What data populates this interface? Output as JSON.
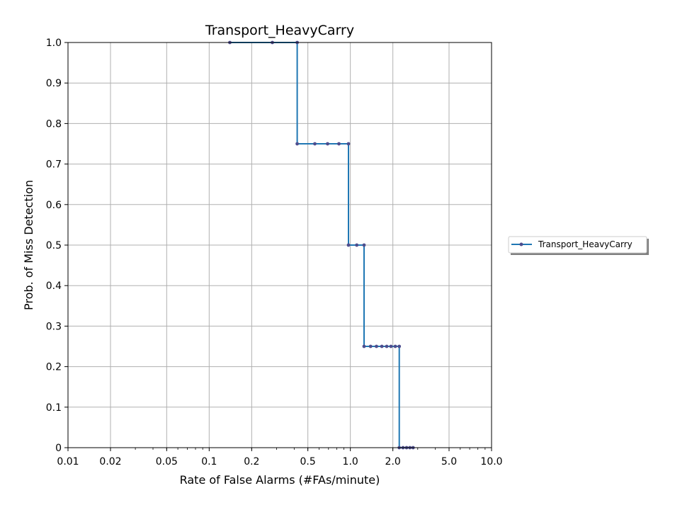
{
  "chart_data": {
    "type": "line",
    "title": "Transport_HeavyCarry",
    "xlabel": "Rate of False Alarms (#FAs/minute)",
    "ylabel": "Prob. of Miss Detection",
    "xscale": "log",
    "xlim": [
      0.01,
      10.0
    ],
    "ylim": [
      0,
      1.0
    ],
    "grid": true,
    "legend_position": "right, outside plot",
    "x_ticks": [
      {
        "value": 0.01,
        "label": "0.01"
      },
      {
        "value": 0.02,
        "label": "0.02"
      },
      {
        "value": 0.05,
        "label": "0.05"
      },
      {
        "value": 0.1,
        "label": "0.1"
      },
      {
        "value": 0.2,
        "label": "0.2"
      },
      {
        "value": 0.5,
        "label": "0.5"
      },
      {
        "value": 1.0,
        "label": "1.0"
      },
      {
        "value": 2.0,
        "label": "2.0"
      },
      {
        "value": 5.0,
        "label": "5.0"
      },
      {
        "value": 10.0,
        "label": "10.0"
      }
    ],
    "y_ticks": [
      {
        "value": 0,
        "label": "0"
      },
      {
        "value": 0.1,
        "label": "0.1"
      },
      {
        "value": 0.2,
        "label": "0.2"
      },
      {
        "value": 0.3,
        "label": "0.3"
      },
      {
        "value": 0.4,
        "label": "0.4"
      },
      {
        "value": 0.5,
        "label": "0.5"
      },
      {
        "value": 0.6,
        "label": "0.6"
      },
      {
        "value": 0.7,
        "label": "0.7"
      },
      {
        "value": 0.8,
        "label": "0.8"
      },
      {
        "value": 0.9,
        "label": "0.9"
      },
      {
        "value": 1.0,
        "label": "1.0"
      }
    ],
    "series": [
      {
        "name": "Transport_HeavyCarry",
        "color": "#1f77b4",
        "marker_color": "#4e4e8e",
        "x": [
          0.14,
          0.28,
          0.42,
          0.42,
          0.56,
          0.69,
          0.83,
          0.97,
          0.97,
          1.11,
          1.25,
          1.25,
          1.39,
          1.53,
          1.67,
          1.81,
          1.94,
          2.08,
          2.22,
          2.22,
          2.36,
          2.5,
          2.64,
          2.78
        ],
        "y": [
          1.0,
          1.0,
          1.0,
          0.75,
          0.75,
          0.75,
          0.75,
          0.75,
          0.5,
          0.5,
          0.5,
          0.25,
          0.25,
          0.25,
          0.25,
          0.25,
          0.25,
          0.25,
          0.25,
          0.0,
          0.0,
          0.0,
          0.0,
          0.0
        ]
      }
    ]
  }
}
